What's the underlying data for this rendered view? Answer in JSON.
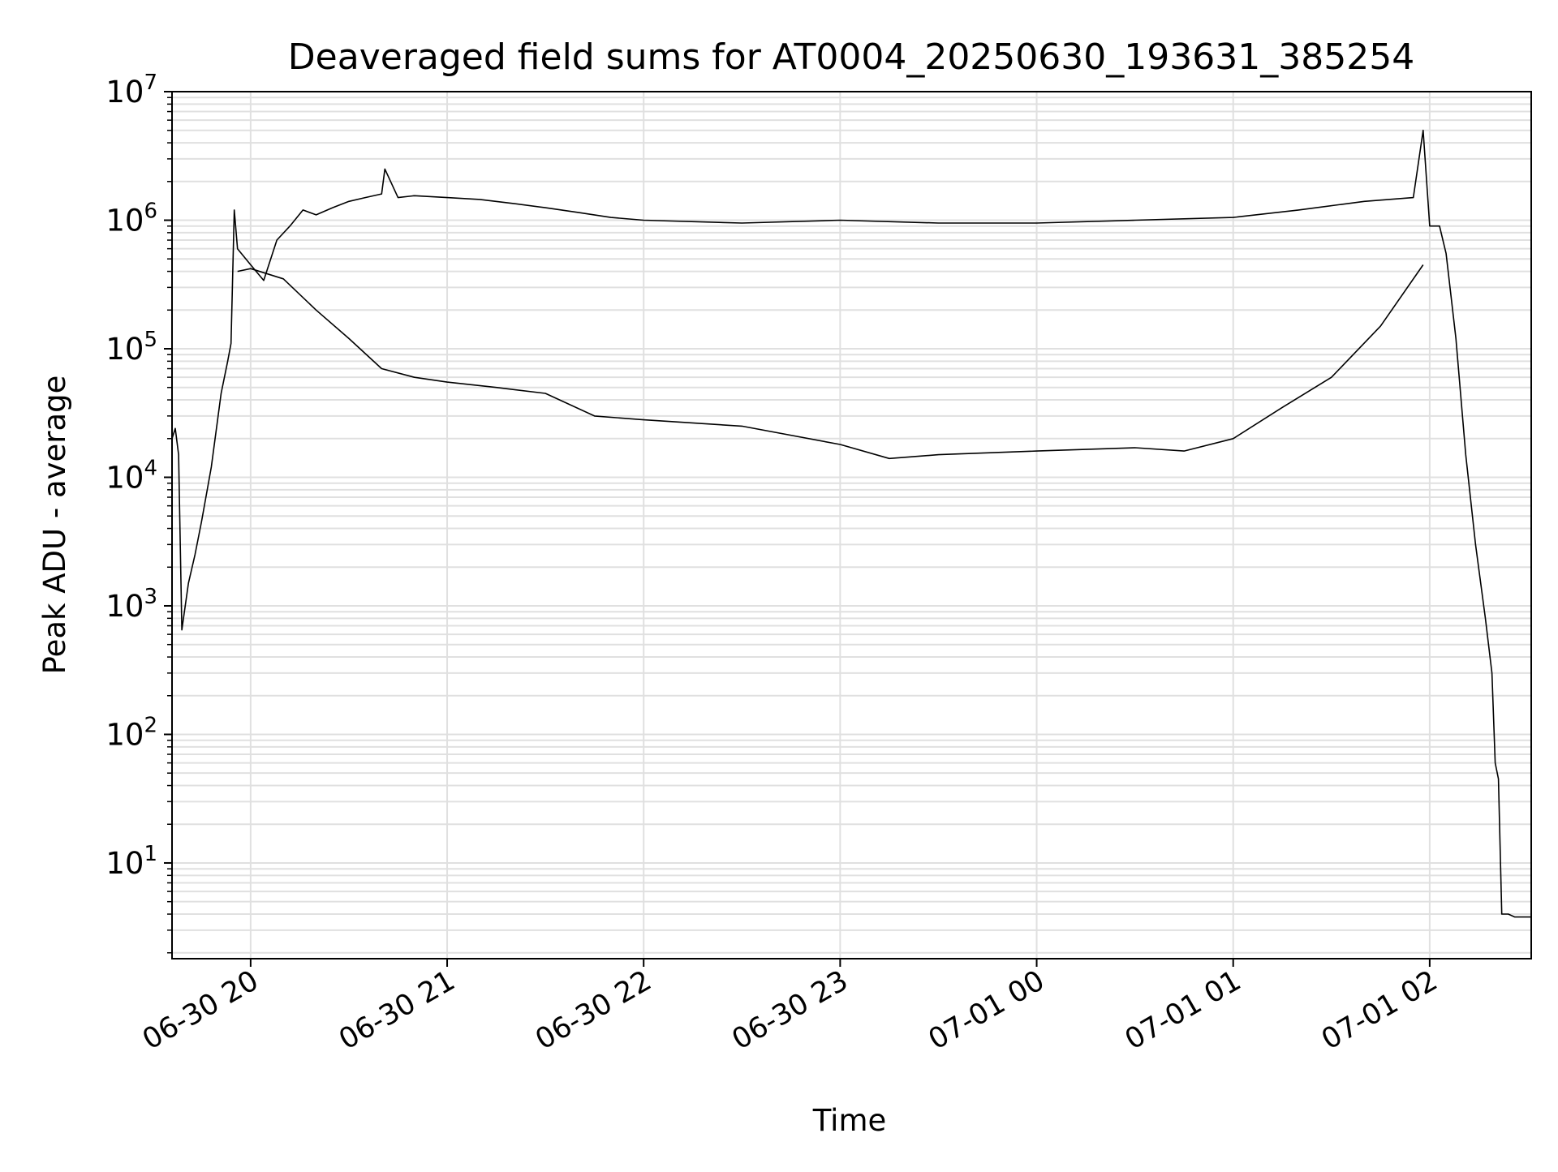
{
  "chart_data": {
    "type": "line",
    "title": "Deaveraged field sums for AT0004_20250630_193631_385254",
    "xlabel": "Time",
    "ylabel": "Peak ADU - average",
    "yscale": "log",
    "ylim": [
      1.8,
      10000000
    ],
    "xlim": [
      "2025-06-30 19:36",
      "2025-07-01 02:31"
    ],
    "grid": {
      "major": true,
      "minor_y": true
    },
    "line_color": "#000000",
    "grid_color": "#e0e0e0",
    "x_ticks": [
      {
        "time": "2025-06-30 20:00",
        "label": "06-30 20"
      },
      {
        "time": "2025-06-30 21:00",
        "label": "06-30 21"
      },
      {
        "time": "2025-06-30 22:00",
        "label": "06-30 22"
      },
      {
        "time": "2025-06-30 23:00",
        "label": "06-30 23"
      },
      {
        "time": "2025-07-01 00:00",
        "label": "07-01 00"
      },
      {
        "time": "2025-07-01 01:00",
        "label": "07-01 01"
      },
      {
        "time": "2025-07-01 02:00",
        "label": "07-01 02"
      }
    ],
    "y_ticks": [
      {
        "value": 10,
        "base": "10",
        "exp": "1"
      },
      {
        "value": 100,
        "base": "10",
        "exp": "2"
      },
      {
        "value": 1000,
        "base": "10",
        "exp": "3"
      },
      {
        "value": 10000,
        "base": "10",
        "exp": "4"
      },
      {
        "value": 100000,
        "base": "10",
        "exp": "5"
      },
      {
        "value": 1000000,
        "base": "10",
        "exp": "6"
      },
      {
        "value": 10000000,
        "base": "10",
        "exp": "7"
      }
    ],
    "series": [
      {
        "points": [
          [
            "2025-06-30 19:36",
            20000
          ],
          [
            "2025-06-30 19:37",
            24000
          ],
          [
            "2025-06-30 19:38",
            15000
          ],
          [
            "2025-06-30 19:39",
            650
          ],
          [
            "2025-06-30 19:41",
            1500
          ],
          [
            "2025-06-30 19:43",
            2500
          ],
          [
            "2025-06-30 19:45",
            4500
          ],
          [
            "2025-06-30 19:48",
            12000
          ],
          [
            "2025-06-30 19:51",
            45000
          ],
          [
            "2025-06-30 19:53",
            80000
          ],
          [
            "2025-06-30 19:54",
            110000
          ],
          [
            "2025-06-30 19:55",
            1200000
          ],
          [
            "2025-06-30 19:56",
            600000
          ],
          [
            "2025-06-30 20:00",
            450000
          ],
          [
            "2025-06-30 20:04",
            340000
          ],
          [
            "2025-06-30 20:08",
            700000
          ],
          [
            "2025-06-30 20:12",
            900000
          ],
          [
            "2025-06-30 20:16",
            1200000
          ],
          [
            "2025-06-30 20:20",
            1100000
          ],
          [
            "2025-06-30 20:25",
            1250000
          ],
          [
            "2025-06-30 20:30",
            1400000
          ],
          [
            "2025-06-30 20:35",
            1500000
          ],
          [
            "2025-06-30 20:40",
            1600000
          ],
          [
            "2025-06-30 20:41",
            2500000
          ],
          [
            "2025-06-30 20:45",
            1500000
          ],
          [
            "2025-06-30 20:50",
            1550000
          ],
          [
            "2025-06-30 21:00",
            1500000
          ],
          [
            "2025-06-30 21:10",
            1450000
          ],
          [
            "2025-06-30 21:20",
            1350000
          ],
          [
            "2025-06-30 21:30",
            1250000
          ],
          [
            "2025-06-30 21:40",
            1150000
          ],
          [
            "2025-06-30 21:50",
            1050000
          ],
          [
            "2025-06-30 22:00",
            1000000
          ],
          [
            "2025-06-30 22:30",
            950000
          ],
          [
            "2025-06-30 23:00",
            1000000
          ],
          [
            "2025-06-30 23:30",
            950000
          ],
          [
            "2025-07-01 00:00",
            950000
          ],
          [
            "2025-07-01 00:30",
            1000000
          ],
          [
            "2025-07-01 01:00",
            1050000
          ],
          [
            "2025-07-01 01:20",
            1200000
          ],
          [
            "2025-07-01 01:40",
            1400000
          ],
          [
            "2025-07-01 01:55",
            1500000
          ],
          [
            "2025-07-01 01:58",
            5000000
          ],
          [
            "2025-07-01 02:00",
            900000
          ],
          [
            "2025-07-01 02:03",
            900000
          ],
          [
            "2025-07-01 02:05",
            550000
          ],
          [
            "2025-07-01 02:08",
            120000
          ],
          [
            "2025-07-01 02:11",
            15000
          ],
          [
            "2025-07-01 02:14",
            3000
          ],
          [
            "2025-07-01 02:17",
            800
          ],
          [
            "2025-07-01 02:19",
            300
          ],
          [
            "2025-07-01 02:20",
            60
          ],
          [
            "2025-07-01 02:21",
            45
          ],
          [
            "2025-07-01 02:22",
            4
          ],
          [
            "2025-07-01 02:24",
            4
          ],
          [
            "2025-07-01 02:26",
            3.8
          ],
          [
            "2025-07-01 02:31",
            3.8
          ]
        ]
      },
      {
        "points": [
          [
            "2025-06-30 19:56",
            400000
          ],
          [
            "2025-06-30 20:00",
            420000
          ],
          [
            "2025-06-30 20:10",
            350000
          ],
          [
            "2025-06-30 20:20",
            200000
          ],
          [
            "2025-06-30 20:30",
            120000
          ],
          [
            "2025-06-30 20:40",
            70000
          ],
          [
            "2025-06-30 20:50",
            60000
          ],
          [
            "2025-06-30 21:00",
            55000
          ],
          [
            "2025-06-30 21:15",
            50000
          ],
          [
            "2025-06-30 21:30",
            45000
          ],
          [
            "2025-06-30 21:45",
            30000
          ],
          [
            "2025-06-30 22:00",
            28000
          ],
          [
            "2025-06-30 22:30",
            25000
          ],
          [
            "2025-06-30 23:00",
            18000
          ],
          [
            "2025-06-30 23:15",
            14000
          ],
          [
            "2025-06-30 23:30",
            15000
          ],
          [
            "2025-07-01 00:00",
            16000
          ],
          [
            "2025-07-01 00:30",
            17000
          ],
          [
            "2025-07-01 00:45",
            16000
          ],
          [
            "2025-07-01 01:00",
            20000
          ],
          [
            "2025-07-01 01:15",
            35000
          ],
          [
            "2025-07-01 01:30",
            60000
          ],
          [
            "2025-07-01 01:45",
            150000
          ],
          [
            "2025-07-01 01:58",
            450000
          ]
        ]
      }
    ]
  }
}
